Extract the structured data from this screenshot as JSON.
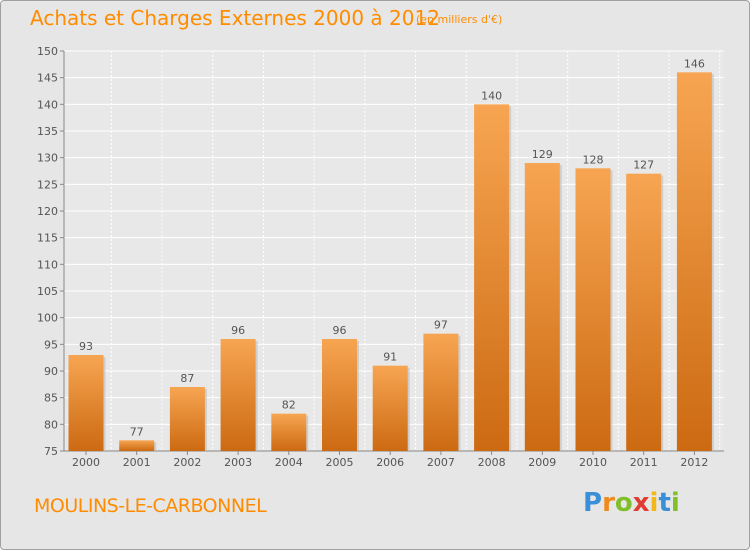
{
  "chart_data": {
    "type": "bar",
    "title": "Achats et Charges Externes 2000 à 2012",
    "subtitle": "(en milliers d'€)",
    "categories": [
      "2000",
      "2001",
      "2002",
      "2003",
      "2004",
      "2005",
      "2006",
      "2007",
      "2008",
      "2009",
      "2010",
      "2011",
      "2012"
    ],
    "values": [
      93,
      77,
      87,
      96,
      82,
      96,
      91,
      97,
      140,
      129,
      128,
      127,
      146
    ],
    "ylim": [
      75,
      150
    ],
    "yticks": [
      75,
      80,
      85,
      90,
      95,
      100,
      105,
      110,
      115,
      120,
      125,
      130,
      135,
      140,
      145,
      150
    ],
    "grid": true,
    "bar_color_top": "#f7a552",
    "bar_color_bottom": "#cc6a12"
  },
  "commune": "MOULINS-LE-CARBONNEL",
  "logo": {
    "letters": [
      "P",
      "r",
      "o",
      "x",
      "i",
      "t",
      "i"
    ],
    "colors": [
      "#3a8fd8",
      "#f08a1c",
      "#7fbf2a",
      "#e03c31",
      "#f2b817",
      "#3a8fd8",
      "#7fbf2a"
    ]
  },
  "colors": {
    "title": "#ff8c00",
    "background": "#e6e6e6"
  }
}
